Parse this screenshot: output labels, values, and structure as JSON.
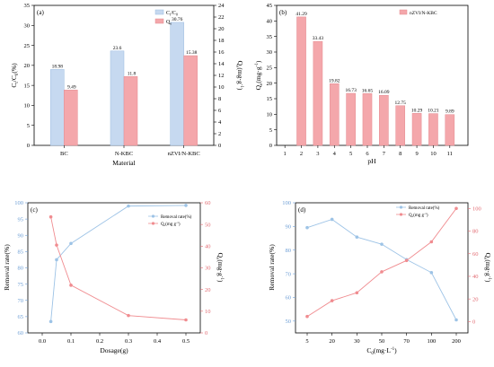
{
  "chart_data": [
    {
      "panel": "(a)",
      "type": "bar",
      "xlabel": "Material",
      "ylabel_left": "C_t/C_0(%)",
      "ylabel_right": "Q_e(mg·g^-1)",
      "categories": [
        "BC",
        "N-KBC",
        "nZVI/N-KBC"
      ],
      "y_left_lim": [
        0,
        35
      ],
      "y_left_ticks": [
        0,
        5,
        10,
        15,
        20,
        25,
        30,
        35
      ],
      "y_right_lim": [
        0,
        24
      ],
      "y_right_ticks": [
        0,
        2,
        4,
        6,
        8,
        10,
        12,
        14,
        16,
        18,
        20,
        22,
        24
      ],
      "series": [
        {
          "name": "C_t/C_0",
          "axis": "left",
          "values": [
            18.98,
            23.6,
            30.76
          ],
          "labels": [
            "18.98",
            "23.6",
            "30.76"
          ],
          "color": "#c6d9f0"
        },
        {
          "name": "Q_e",
          "axis": "right",
          "values": [
            9.49,
            11.8,
            15.38
          ],
          "labels": [
            "9.49",
            "11.8",
            "15.38"
          ],
          "color": "#f4a7ab"
        }
      ]
    },
    {
      "panel": "(b)",
      "type": "bar",
      "xlabel": "pH",
      "ylabel": "Q_e(mg·g^-1)",
      "x_ticks": [
        "1",
        "2",
        "3",
        "4",
        "5",
        "6",
        "7",
        "8",
        "9",
        "10",
        "11"
      ],
      "categories": [
        "2",
        "3",
        "4",
        "5",
        "6",
        "7",
        "8",
        "9",
        "10",
        "11"
      ],
      "ylim": [
        0,
        45
      ],
      "y_ticks": [
        0,
        5,
        10,
        15,
        20,
        25,
        30,
        35,
        40,
        45
      ],
      "series": [
        {
          "name": "nZVI/N-KBC",
          "values": [
            41.29,
            33.43,
            19.82,
            16.73,
            16.65,
            16.09,
            12.75,
            10.29,
            10.21,
            9.89
          ],
          "labels": [
            "41.29",
            "33.43",
            "19.82",
            "16.73",
            "16.65",
            "16.09",
            "12.75",
            "10.29",
            "10.21",
            "9.89"
          ],
          "color": "#f4a7ab"
        }
      ]
    },
    {
      "panel": "(c)",
      "type": "line",
      "xlabel": "Dosage(g)",
      "ylabel_left": "Removal rate(%)",
      "ylabel_right": "Q_e(mg·g^-1)",
      "xlim": [
        -0.05,
        0.55
      ],
      "x_ticks": [
        0.0,
        0.1,
        0.2,
        0.3,
        0.4,
        0.5
      ],
      "y_left_lim": [
        60,
        100
      ],
      "y_left_ticks": [
        60,
        65,
        70,
        75,
        80,
        85,
        90,
        95,
        100
      ],
      "y_right_lim": [
        0,
        60
      ],
      "y_right_ticks": [
        0,
        10,
        20,
        30,
        40,
        50,
        60
      ],
      "series": [
        {
          "name": "Removal rate(%)",
          "axis": "left",
          "x": [
            0.03,
            0.05,
            0.1,
            0.3,
            0.5
          ],
          "y": [
            63.5,
            82.5,
            87.5,
            99.0,
            99.2
          ],
          "color": "#9dc3e6"
        },
        {
          "name": "Q_e(mg·g^-1)",
          "axis": "right",
          "x": [
            0.03,
            0.05,
            0.1,
            0.3,
            0.5
          ],
          "y": [
            53.5,
            40.5,
            22.0,
            8.0,
            6.0
          ],
          "color": "#f08c90"
        }
      ]
    },
    {
      "panel": "(d)",
      "type": "line",
      "xlabel": "C_0(mg·L^-1)",
      "ylabel_left": "Removal rate(%)",
      "ylabel_right": "Q_e(mg·g^-1)",
      "categories": [
        "5",
        "20",
        "30",
        "50",
        "70",
        "100",
        "200"
      ],
      "y_left_lim": [
        45,
        100
      ],
      "y_left_ticks": [
        50,
        60,
        70,
        80,
        90,
        100
      ],
      "y_right_lim": [
        -10,
        105
      ],
      "y_right_ticks": [
        0,
        20,
        40,
        60,
        80,
        100
      ],
      "series": [
        {
          "name": "Removal rate(%)",
          "axis": "left",
          "y": [
            89.5,
            93.0,
            85.5,
            82.5,
            76.0,
            70.5,
            50.5
          ],
          "color": "#9dc3e6"
        },
        {
          "name": "Q_e(mg·g^-1)",
          "axis": "right",
          "y": [
            4.5,
            18.5,
            25.5,
            44.0,
            54.0,
            70.5,
            100.0
          ],
          "color": "#f08c90"
        }
      ]
    }
  ],
  "text": {
    "a_panel": "(a)",
    "a_xlabel": "Material",
    "a_leg1": "C",
    "a_leg1_sub1": "t",
    "a_leg1_mid": "/C",
    "a_leg1_sub2": "0",
    "a_leg2": "Q",
    "a_leg2_sub": "e",
    "b_panel": "(b)",
    "b_xlabel": "pH",
    "b_legend": "nZVI/N-KBC",
    "c_panel": "(c)",
    "c_xlabel": "Dosage(g)",
    "c_ylabel_left": "Removal rate(%)",
    "c_leg1": "Removal rate(%)",
    "c_leg2": "Q",
    "d_panel": "(d)",
    "d_ylabel_left": "Removal rate(%)",
    "d_leg1": "Removal rate(%)",
    "d_leg2": "Q",
    "qe_Q": "Q",
    "qe_e": "e",
    "qe_unit": "(mg·g",
    "qe_exp": "-1",
    "qe_close": ")",
    "ct_C": "C",
    "ct_t": "t",
    "ct_mid": "/C",
    "ct_0": "0",
    "ct_pct": "(%)",
    "d_x_C": "C",
    "d_x_0": "0",
    "d_x_unit": "(mg·L",
    "d_x_exp": "-1",
    "d_x_close": ")",
    "leg_unit": "(mg g",
    "leg_exp": "-1",
    "leg_close": ")"
  },
  "colors": {
    "blue_bar": "#c6d9f0",
    "blue_edge": "#9bbce0",
    "red_bar": "#f4a7ab",
    "red_edge": "#e58a90",
    "blue_line": "#9dc3e6",
    "red_line": "#f08c90",
    "blue_axis": "#6fa0d6",
    "red_axis": "#e26b72"
  }
}
